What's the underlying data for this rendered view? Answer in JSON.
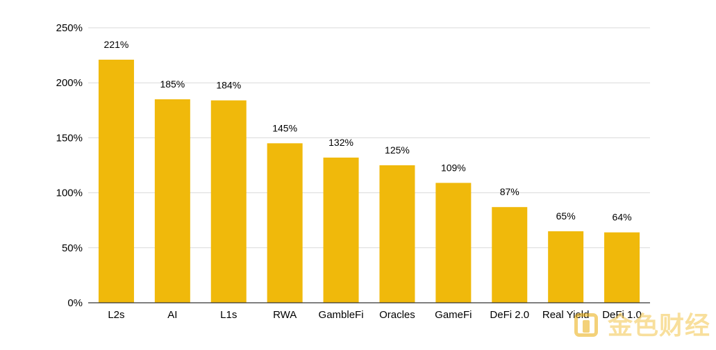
{
  "chart_data": {
    "type": "bar",
    "title": "",
    "xlabel": "",
    "ylabel": "",
    "categories": [
      "L2s",
      "AI",
      "L1s",
      "RWA",
      "GambleFi",
      "Oracles",
      "GameFi",
      "DeFi 2.0",
      "Real Yield",
      "DeFi 1.0"
    ],
    "values": [
      221,
      185,
      184,
      145,
      132,
      125,
      109,
      87,
      65,
      64
    ],
    "value_labels": [
      "221%",
      "185%",
      "184%",
      "145%",
      "132%",
      "125%",
      "109%",
      "87%",
      "65%",
      "64%"
    ],
    "y_ticks": [
      0,
      50,
      100,
      150,
      200,
      250
    ],
    "y_tick_labels": [
      "0%",
      "50%",
      "100%",
      "150%",
      "200%",
      "250%"
    ],
    "ylim": [
      0,
      250
    ],
    "grid": true,
    "legend": "none",
    "bar_color": "#f0b90b",
    "grid_color": "#d9d9d9",
    "axis_color": "#333333"
  },
  "watermark": {
    "text": "金色财经",
    "color": "#f0b90b",
    "icon": "jinse-logo-icon"
  }
}
